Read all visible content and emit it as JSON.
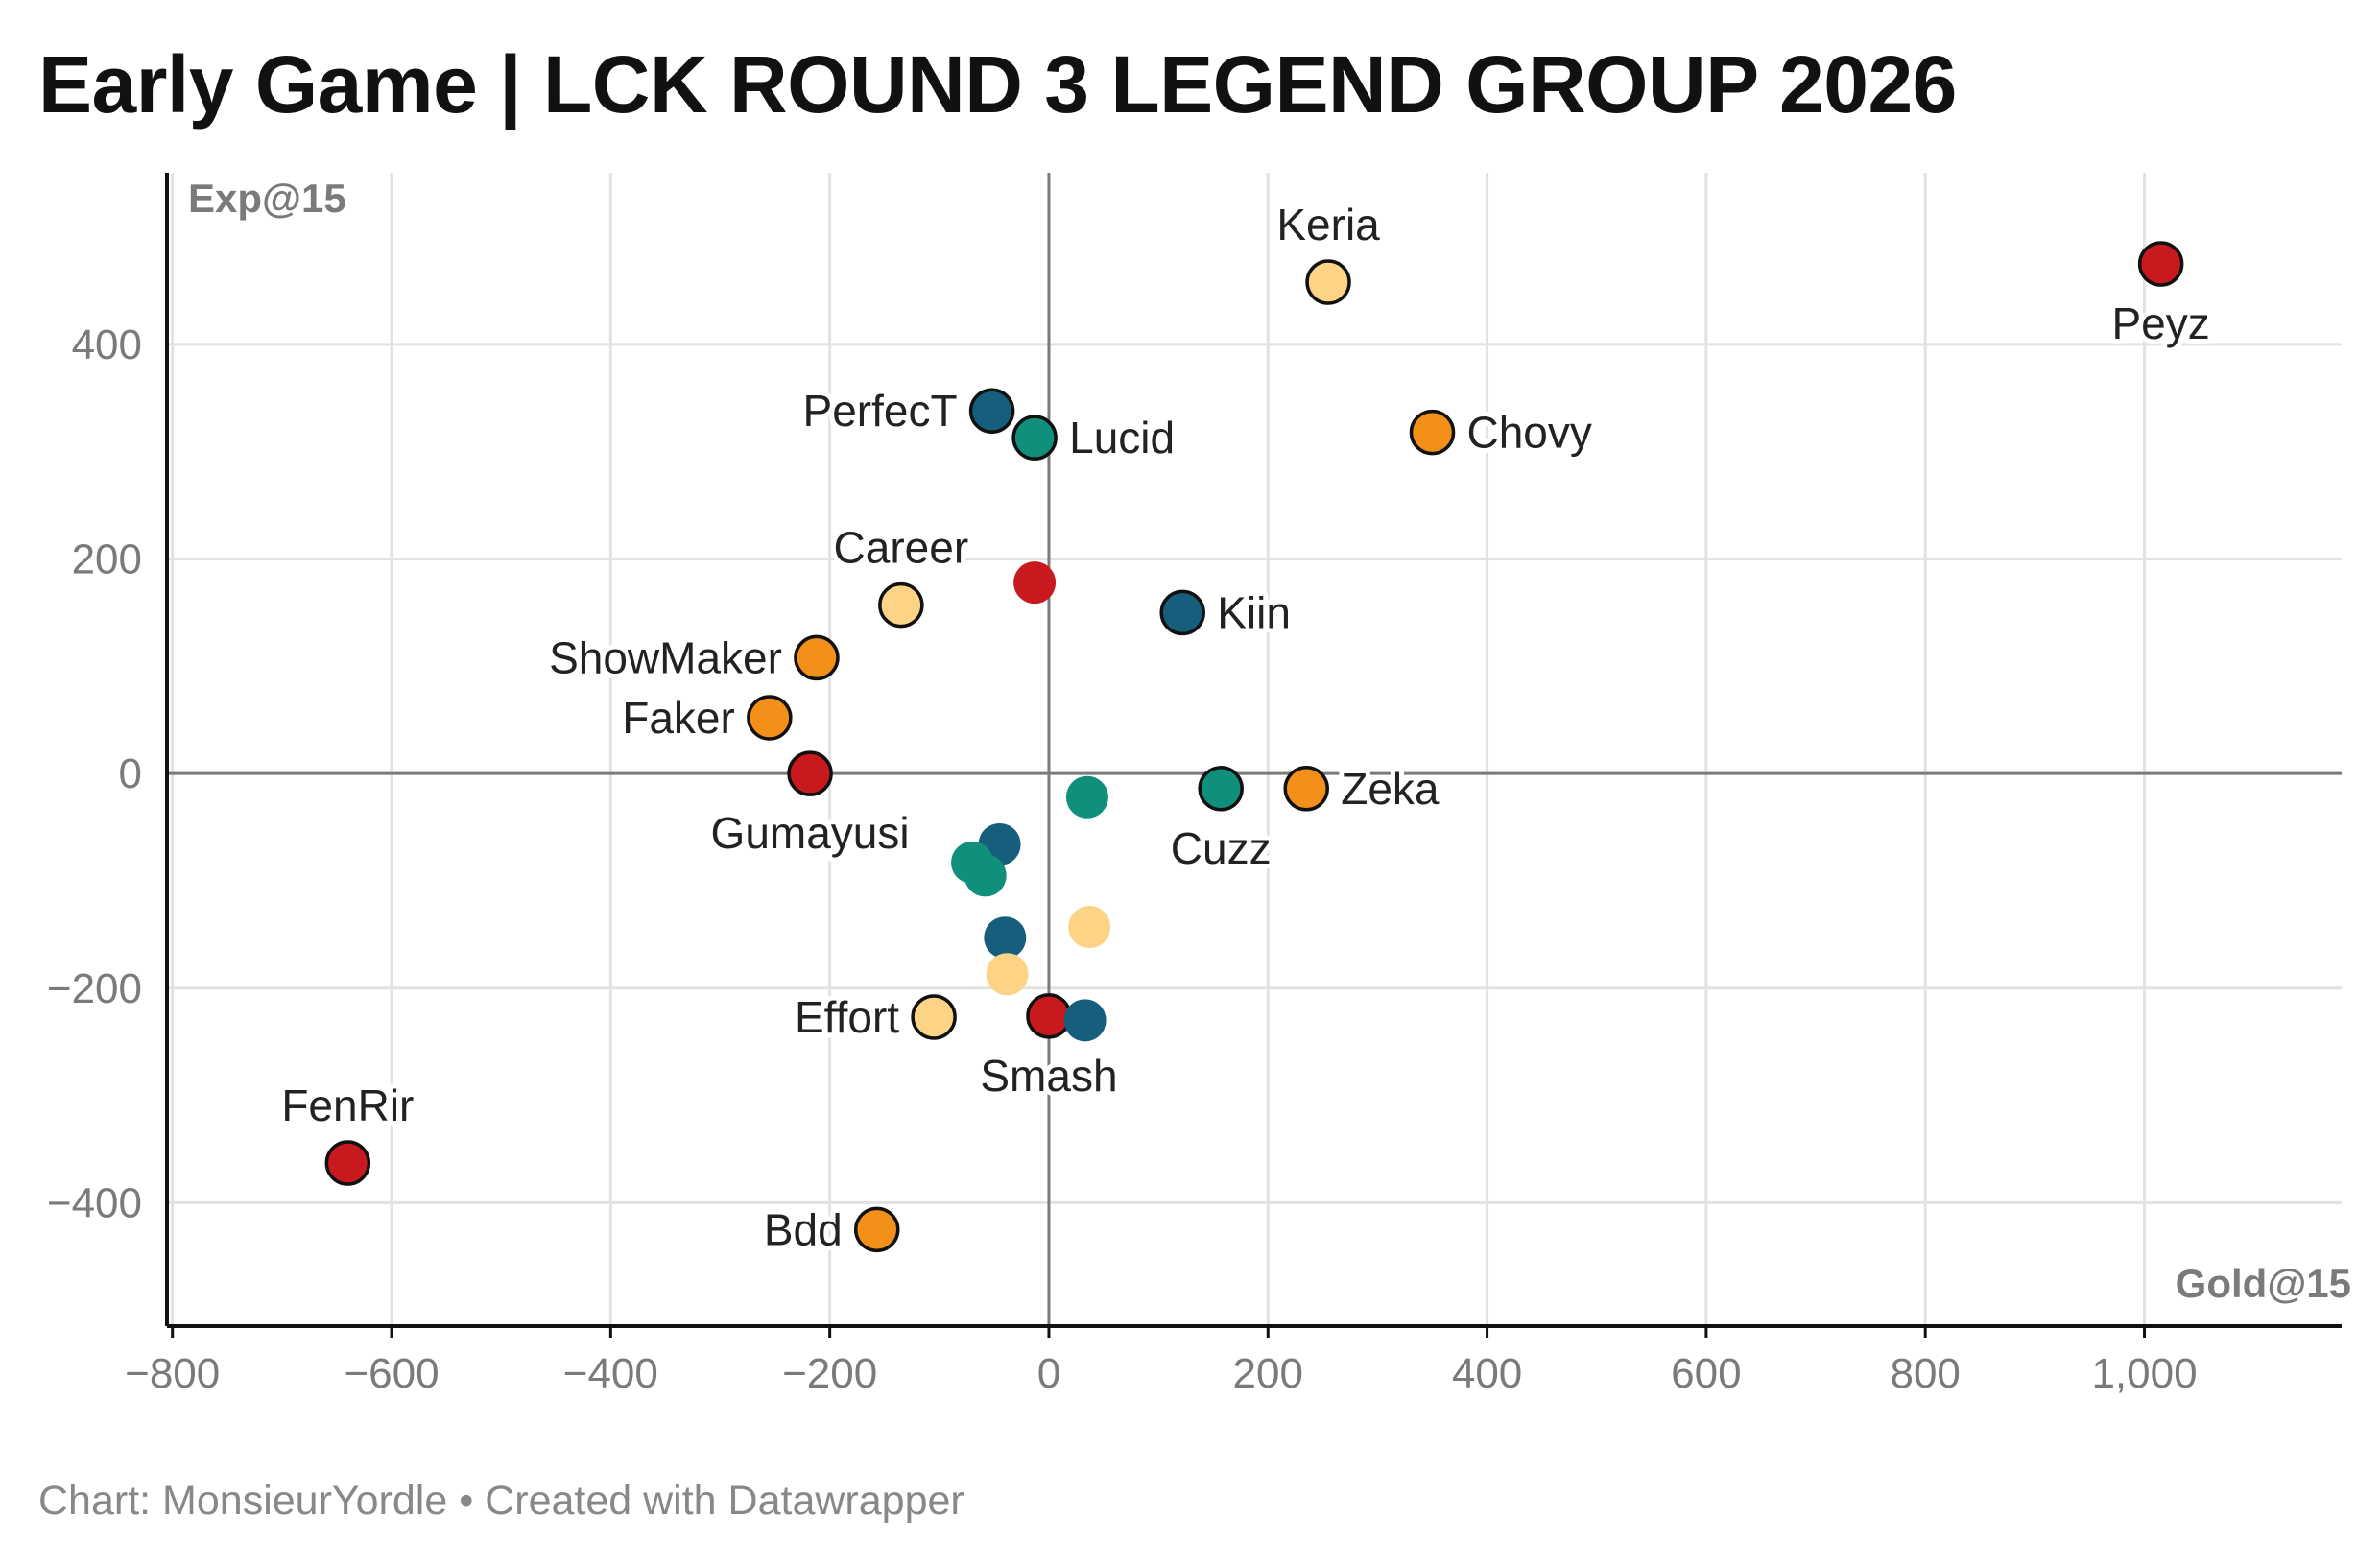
{
  "title": "Early Game | LCK ROUND 3 LEGEND GROUP 2026",
  "footer": {
    "chart_credit": "Chart: MonsieurYordle",
    "separator": " • ",
    "created_with": "Created with Datawrapper"
  },
  "colors": {
    "red": "#c8191e",
    "orange": "#f39019",
    "light_orange": "#fdd386",
    "teal": "#10907a",
    "dark_blue": "#175e7c",
    "grid": "#e2e2e2",
    "zero_line": "#7a7a7a",
    "axis": "#111111",
    "tick_text": "#7a7a7a",
    "label_text": "#222222"
  },
  "chart_data": {
    "type": "scatter",
    "xlabel": "Gold@15",
    "ylabel": "Exp@15",
    "xlim": [
      -805,
      1180
    ],
    "ylim": [
      -515,
      560
    ],
    "x_ticks": [
      {
        "value": -800,
        "label": "−800"
      },
      {
        "value": -600,
        "label": "−600"
      },
      {
        "value": -400,
        "label": "−400"
      },
      {
        "value": -200,
        "label": "−200"
      },
      {
        "value": 0,
        "label": "0"
      },
      {
        "value": 200,
        "label": "200"
      },
      {
        "value": 400,
        "label": "400"
      },
      {
        "value": 600,
        "label": "600"
      },
      {
        "value": 800,
        "label": "800"
      },
      {
        "value": 1000,
        "label": "1,000"
      }
    ],
    "y_ticks": [
      {
        "value": 400,
        "label": "400"
      },
      {
        "value": 200,
        "label": "200"
      },
      {
        "value": 0,
        "label": "0"
      },
      {
        "value": -200,
        "label": "−200"
      },
      {
        "value": -400,
        "label": "−400"
      }
    ],
    "grid": true,
    "legend": "none",
    "points": [
      {
        "label": "Peyz",
        "x": 1015,
        "y": 475,
        "color": "red",
        "label_pos": "below"
      },
      {
        "label": "Keria",
        "x": 255,
        "y": 458,
        "color": "light_orange",
        "label_pos": "above"
      },
      {
        "label": "Chovy",
        "x": 350,
        "y": 318,
        "color": "orange",
        "label_pos": "right"
      },
      {
        "label": "PerfecT",
        "x": -52,
        "y": 338,
        "color": "dark_blue",
        "label_pos": "left"
      },
      {
        "label": "Lucid",
        "x": -13,
        "y": 313,
        "color": "teal",
        "label_pos": "right"
      },
      {
        "label": "Career",
        "x": -135,
        "y": 157,
        "color": "light_orange",
        "label_pos": "above"
      },
      {
        "label": "",
        "x": -13,
        "y": 178,
        "color": "red",
        "label_pos": "none"
      },
      {
        "label": "Kiin",
        "x": 122,
        "y": 150,
        "color": "dark_blue",
        "label_pos": "right"
      },
      {
        "label": "ShowMaker",
        "x": -212,
        "y": 108,
        "color": "orange",
        "label_pos": "left"
      },
      {
        "label": "Faker",
        "x": -255,
        "y": 52,
        "color": "orange",
        "label_pos": "left"
      },
      {
        "label": "Gumayusi",
        "x": -218,
        "y": 0,
        "color": "red",
        "label_pos": "below"
      },
      {
        "label": "Cuzz",
        "x": 157,
        "y": -14,
        "color": "teal",
        "label_pos": "below"
      },
      {
        "label": "Zeka",
        "x": 235,
        "y": -14,
        "color": "orange",
        "label_pos": "right"
      },
      {
        "label": "",
        "x": 35,
        "y": -22,
        "color": "teal",
        "label_pos": "none"
      },
      {
        "label": "",
        "x": -45,
        "y": -66,
        "color": "dark_blue",
        "label_pos": "none"
      },
      {
        "label": "",
        "x": -70,
        "y": -83,
        "color": "teal",
        "label_pos": "none"
      },
      {
        "label": "",
        "x": -58,
        "y": -95,
        "color": "teal",
        "label_pos": "none"
      },
      {
        "label": "",
        "x": 37,
        "y": -143,
        "color": "light_orange",
        "label_pos": "none"
      },
      {
        "label": "",
        "x": -40,
        "y": -153,
        "color": "dark_blue",
        "label_pos": "none"
      },
      {
        "label": "",
        "x": -38,
        "y": -187,
        "color": "light_orange",
        "label_pos": "none"
      },
      {
        "label": "Effort",
        "x": -105,
        "y": -227,
        "color": "light_orange",
        "label_pos": "left"
      },
      {
        "label": "Smash",
        "x": 0,
        "y": -226,
        "color": "red",
        "label_pos": "below"
      },
      {
        "label": "",
        "x": 33,
        "y": -230,
        "color": "dark_blue",
        "label_pos": "none"
      },
      {
        "label": "FenRir",
        "x": -640,
        "y": -363,
        "color": "red",
        "label_pos": "above"
      },
      {
        "label": "Bdd",
        "x": -157,
        "y": -425,
        "color": "orange",
        "label_pos": "left"
      }
    ]
  }
}
